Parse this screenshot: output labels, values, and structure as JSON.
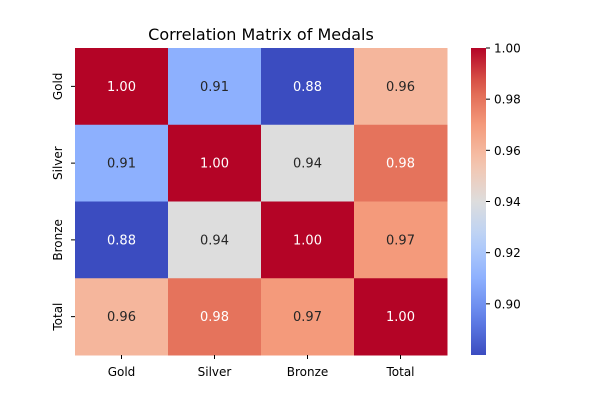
{
  "chart_data": {
    "type": "heatmap",
    "title": "Correlation Matrix of Medals",
    "xlabel": "",
    "ylabel": "",
    "x_categories": [
      "Gold",
      "Silver",
      "Bronze",
      "Total"
    ],
    "y_categories": [
      "Gold",
      "Silver",
      "Bronze",
      "Total"
    ],
    "values": [
      [
        1.0,
        0.91,
        0.88,
        0.96
      ],
      [
        0.91,
        1.0,
        0.94,
        0.98
      ],
      [
        0.88,
        0.94,
        1.0,
        0.97
      ],
      [
        0.96,
        0.98,
        0.97,
        1.0
      ]
    ],
    "value_labels": [
      [
        "1.00",
        "0.91",
        "0.88",
        "0.96"
      ],
      [
        "0.91",
        "1.00",
        "0.94",
        "0.98"
      ],
      [
        "0.88",
        "0.94",
        "1.00",
        "0.97"
      ],
      [
        "0.96",
        "0.98",
        "0.97",
        "1.00"
      ]
    ],
    "colormap": "coolwarm",
    "colorbar": {
      "vmin": 0.88,
      "vmax": 1.0,
      "ticks": [
        0.9,
        0.92,
        0.94,
        0.96,
        0.98,
        1.0
      ],
      "tick_labels": [
        "0.90",
        "0.92",
        "0.94",
        "0.96",
        "0.98",
        "1.00"
      ]
    },
    "grid": false,
    "legend": "colorbar-right"
  }
}
